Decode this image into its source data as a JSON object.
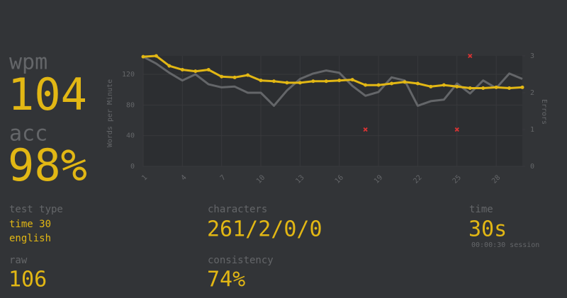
{
  "stats": {
    "wpm": {
      "label": "wpm",
      "value": "104"
    },
    "acc": {
      "label": "acc",
      "value": "98%"
    },
    "test_type": {
      "label": "test type",
      "lines": [
        "time 30",
        "english"
      ]
    },
    "raw": {
      "label": "raw",
      "value": "106"
    },
    "characters": {
      "label": "characters",
      "value": "261/2/0/0"
    },
    "consistency": {
      "label": "consistency",
      "value": "74%"
    },
    "time": {
      "label": "time",
      "value": "30s",
      "session": "00:00:30 session"
    }
  },
  "chart_data": {
    "type": "line",
    "y_label": "Words per Minute",
    "y2_label": "Errors",
    "x": [
      1,
      2,
      3,
      4,
      5,
      6,
      7,
      8,
      9,
      10,
      11,
      12,
      13,
      14,
      15,
      16,
      17,
      18,
      19,
      20,
      21,
      22,
      23,
      24,
      25,
      26,
      27,
      28,
      29,
      30
    ],
    "xlim": [
      1,
      30
    ],
    "xticks": [
      1,
      4,
      7,
      10,
      13,
      16,
      19,
      22,
      25,
      28
    ],
    "ylim": [
      0,
      144
    ],
    "yticks": [
      0,
      40,
      80,
      120
    ],
    "y2lim": [
      0,
      3
    ],
    "y2ticks": [
      0,
      1,
      2,
      3
    ],
    "grid": true,
    "series": [
      {
        "type": "line",
        "color": "#646669",
        "values": [
          143,
          134,
          122,
          112,
          120,
          107,
          103,
          104,
          96,
          96,
          79,
          99,
          114,
          121,
          125,
          122,
          105,
          92,
          97,
          116,
          112,
          79,
          85,
          87,
          108,
          95,
          112,
          102,
          121,
          114
        ]
      },
      {
        "type": "line",
        "color": "#e2b714",
        "points": true,
        "values": [
          143,
          144,
          131,
          126,
          124,
          126,
          117,
          116,
          119,
          112,
          111,
          109,
          109,
          111,
          111,
          112,
          113,
          106,
          106,
          108,
          110,
          108,
          104,
          106,
          104,
          102,
          102,
          103,
          102,
          103
        ]
      },
      {
        "type": "scatter",
        "axis": "y2",
        "color": "#da3333",
        "values": [
          null,
          null,
          null,
          null,
          null,
          null,
          null,
          null,
          null,
          null,
          null,
          null,
          null,
          null,
          null,
          null,
          null,
          1,
          null,
          null,
          null,
          null,
          null,
          null,
          1,
          3,
          null,
          null,
          null,
          null
        ]
      }
    ]
  }
}
